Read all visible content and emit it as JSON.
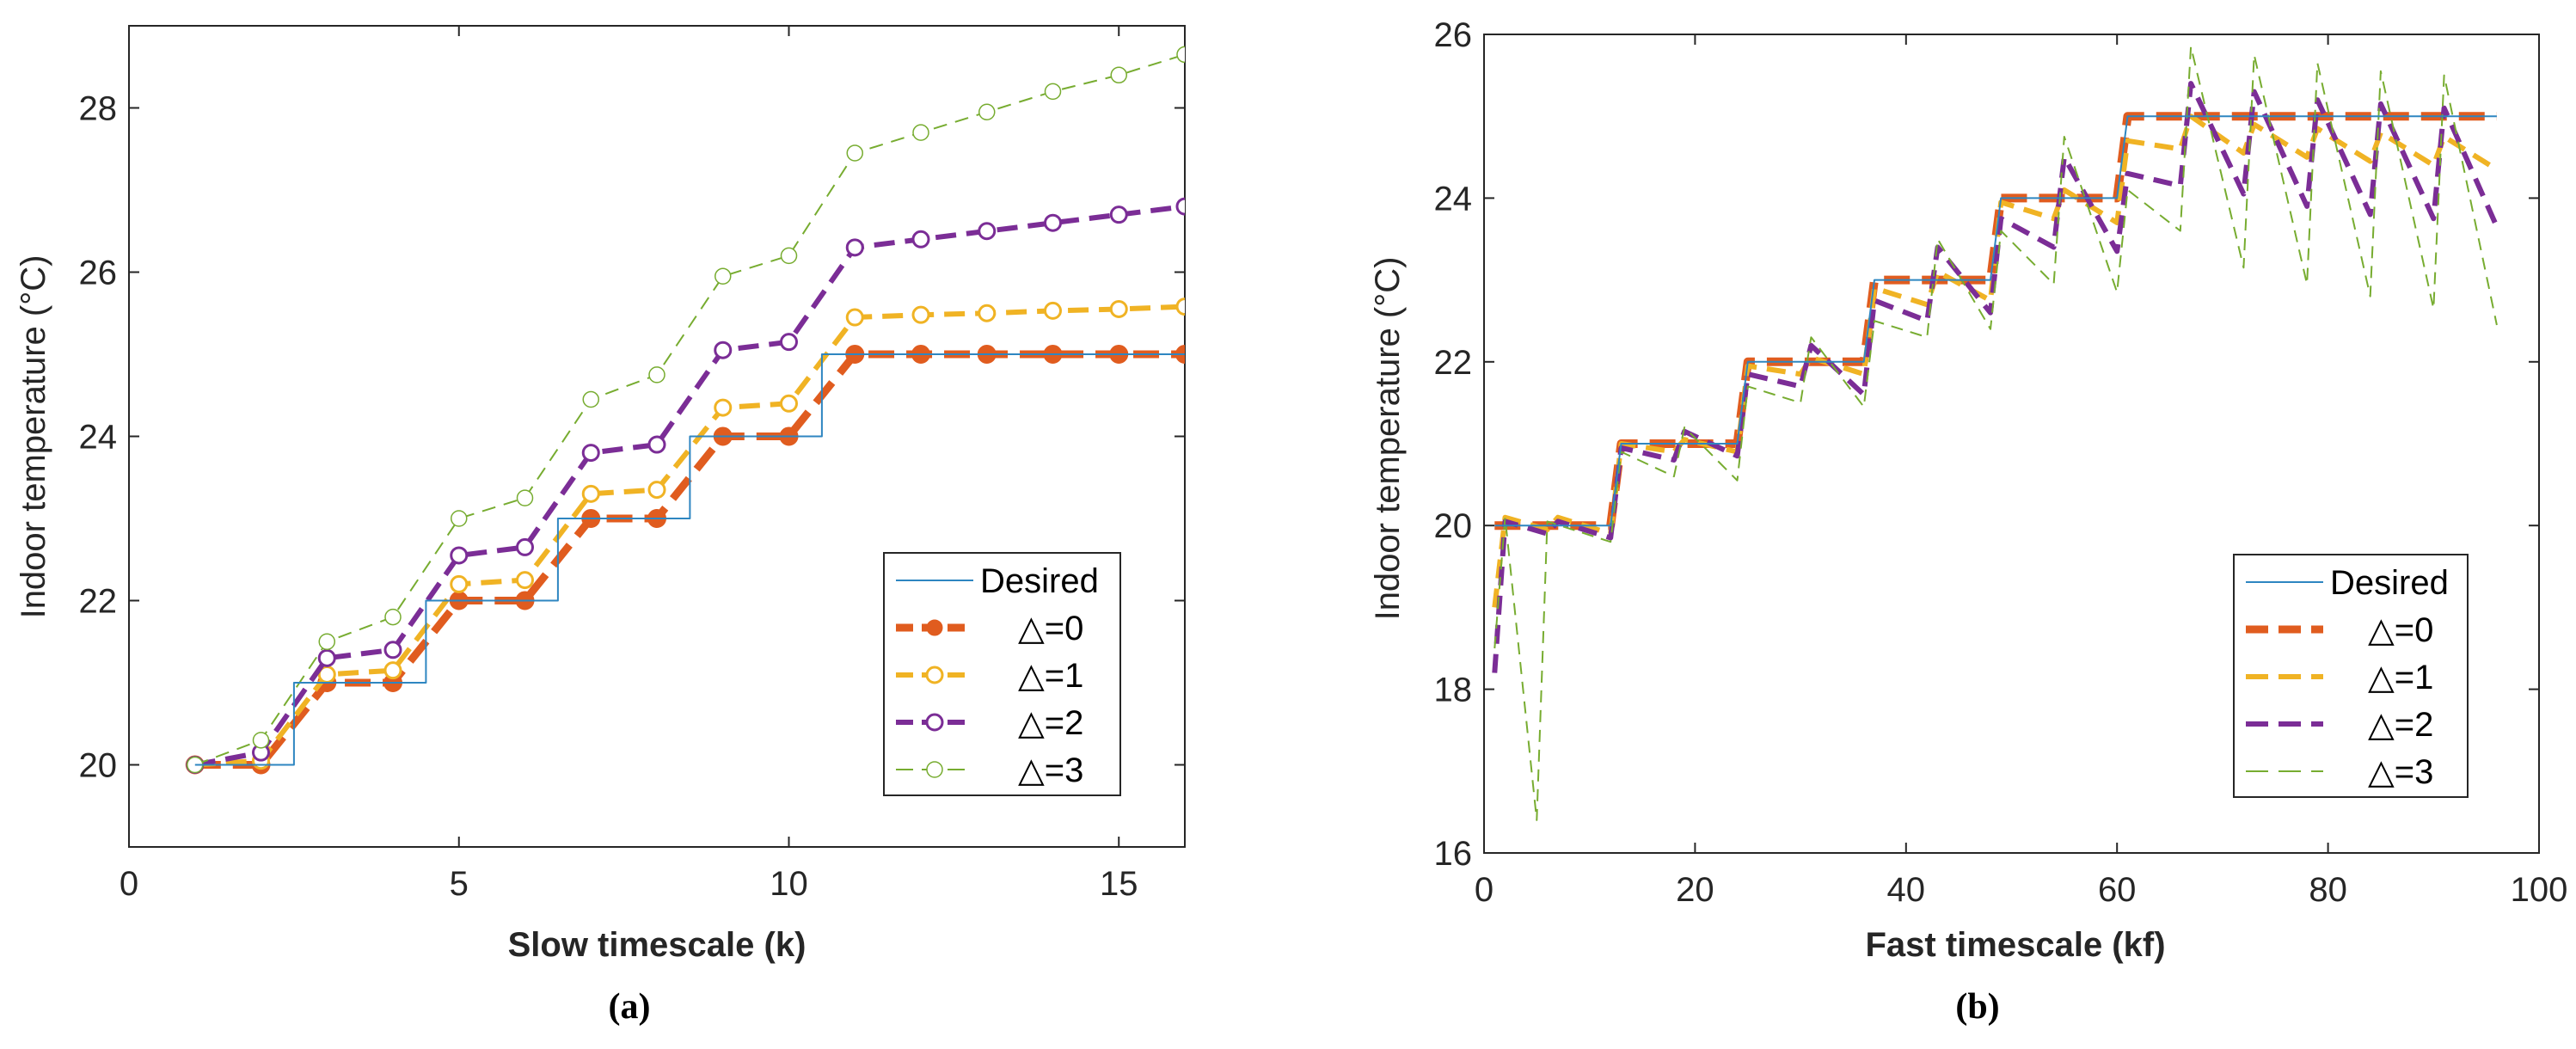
{
  "chart_data": [
    {
      "type": "line",
      "caption": "(a)",
      "xlabel": "Slow timescale (k)",
      "ylabel": "Indoor temperature (°C)",
      "xlim": [
        0,
        16
      ],
      "ylim": [
        19,
        29
      ],
      "xticks": [
        0,
        5,
        10,
        15
      ],
      "yticks": [
        20,
        22,
        24,
        26,
        28
      ],
      "legend_position": "bottom-right",
      "x": [
        1,
        2,
        3,
        4,
        5,
        6,
        7,
        8,
        9,
        10,
        11,
        12,
        13,
        14,
        15,
        16
      ],
      "series": [
        {
          "name": "Desired",
          "color": "#2e86c1",
          "style": "step",
          "values": [
            20,
            20,
            21,
            21,
            22,
            22,
            23,
            23,
            24,
            24,
            25,
            25,
            25,
            25,
            25,
            25
          ]
        },
        {
          "name": "△=0",
          "color": "#e05c1f",
          "style": "thick-dash-filled-marker",
          "values": [
            20,
            20,
            21,
            21,
            22,
            22,
            23,
            23,
            24,
            24,
            25,
            25,
            25,
            25,
            25,
            25
          ]
        },
        {
          "name": "△=1",
          "color": "#f0b324",
          "style": "dash-open-marker",
          "values": [
            20,
            20.05,
            21.1,
            21.15,
            22.2,
            22.25,
            23.3,
            23.35,
            24.35,
            24.4,
            25.45,
            25.48,
            25.5,
            25.53,
            25.55,
            25.58
          ]
        },
        {
          "name": "△=2",
          "color": "#7b2d96",
          "style": "dash-open-marker",
          "values": [
            20,
            20.15,
            21.3,
            21.4,
            22.55,
            22.65,
            23.8,
            23.9,
            25.05,
            25.15,
            26.3,
            26.4,
            26.5,
            26.6,
            26.7,
            26.8
          ]
        },
        {
          "name": "△=3",
          "color": "#77ac30",
          "style": "thin-dash-open-marker",
          "values": [
            20,
            20.3,
            21.5,
            21.8,
            23,
            23.25,
            24.45,
            24.75,
            25.95,
            26.2,
            27.45,
            27.7,
            27.95,
            28.2,
            28.4,
            28.65
          ]
        }
      ]
    },
    {
      "type": "line",
      "caption": "(b)",
      "xlabel": "Fast timescale (kf)",
      "ylabel": "Indoor temperature (°C)",
      "xlim": [
        0,
        100
      ],
      "ylim": [
        16,
        26
      ],
      "xticks": [
        0,
        20,
        40,
        60,
        80,
        100
      ],
      "yticks": [
        16,
        18,
        20,
        22,
        24,
        26
      ],
      "legend_position": "bottom-right",
      "series": [
        {
          "name": "Desired",
          "color": "#2e86c1",
          "style": "step",
          "x": [
            1,
            12,
            13,
            24,
            25,
            36,
            37,
            48,
            49,
            60,
            61,
            96
          ],
          "values": [
            20,
            20,
            21,
            21,
            22,
            22,
            23,
            23,
            24,
            24,
            25,
            25
          ]
        },
        {
          "name": "△=0",
          "color": "#e05c1f",
          "style": "thick-dash",
          "x": [
            1,
            12,
            13,
            24,
            25,
            36,
            37,
            48,
            49,
            60,
            61,
            96
          ],
          "values": [
            20,
            20,
            21,
            21,
            22,
            22,
            23,
            23,
            24,
            24,
            25,
            25
          ]
        },
        {
          "name": "△=1",
          "color": "#f0b324",
          "style": "dash",
          "x": [
            1,
            2,
            6,
            7,
            12,
            13,
            18,
            19,
            24,
            25,
            30,
            31,
            36,
            37,
            42,
            43,
            48,
            49,
            54,
            55,
            60,
            61,
            66,
            67,
            72,
            73,
            78,
            79,
            84,
            85,
            90,
            91,
            96
          ],
          "values": [
            19,
            20.1,
            19.95,
            20.1,
            19.9,
            21,
            20.9,
            21.05,
            20.9,
            21.95,
            21.85,
            22.05,
            21.85,
            22.9,
            22.7,
            23.1,
            22.75,
            23.95,
            23.75,
            24.1,
            23.7,
            24.7,
            24.6,
            25.0,
            24.55,
            24.9,
            24.5,
            24.85,
            24.45,
            24.8,
            24.4,
            24.75,
            24.35
          ]
        },
        {
          "name": "△=2",
          "color": "#7b2d96",
          "style": "dash",
          "x": [
            1,
            2,
            6,
            7,
            12,
            13,
            18,
            19,
            24,
            25,
            30,
            31,
            36,
            37,
            42,
            43,
            48,
            49,
            54,
            55,
            60,
            61,
            66,
            67,
            72,
            73,
            78,
            79,
            84,
            85,
            90,
            91,
            96
          ],
          "values": [
            18.2,
            20.05,
            19.9,
            20.05,
            19.85,
            20.95,
            20.8,
            21.15,
            20.85,
            21.85,
            21.7,
            22.2,
            21.6,
            22.75,
            22.5,
            23.4,
            22.6,
            23.75,
            23.4,
            24.5,
            23.35,
            24.3,
            24.15,
            25.4,
            24.05,
            25.3,
            23.9,
            25.2,
            23.8,
            25.15,
            23.75,
            25.1,
            23.65
          ]
        },
        {
          "name": "△=3",
          "color": "#77ac30",
          "style": "thin-dash",
          "x": [
            1,
            2,
            5,
            6,
            12,
            13,
            18,
            19,
            24,
            25,
            30,
            31,
            36,
            37,
            42,
            43,
            48,
            49,
            54,
            55,
            60,
            61,
            66,
            67,
            72,
            73,
            78,
            79,
            84,
            85,
            90,
            91,
            96
          ],
          "values": [
            18.5,
            20.1,
            16.4,
            20.05,
            19.8,
            20.9,
            20.6,
            21.2,
            20.55,
            21.7,
            21.5,
            22.3,
            21.45,
            22.5,
            22.3,
            23.5,
            22.4,
            23.6,
            22.95,
            24.75,
            22.85,
            24.1,
            23.6,
            25.85,
            23.15,
            25.75,
            22.95,
            25.65,
            22.8,
            25.55,
            22.65,
            25.5,
            22.45
          ]
        }
      ]
    }
  ]
}
